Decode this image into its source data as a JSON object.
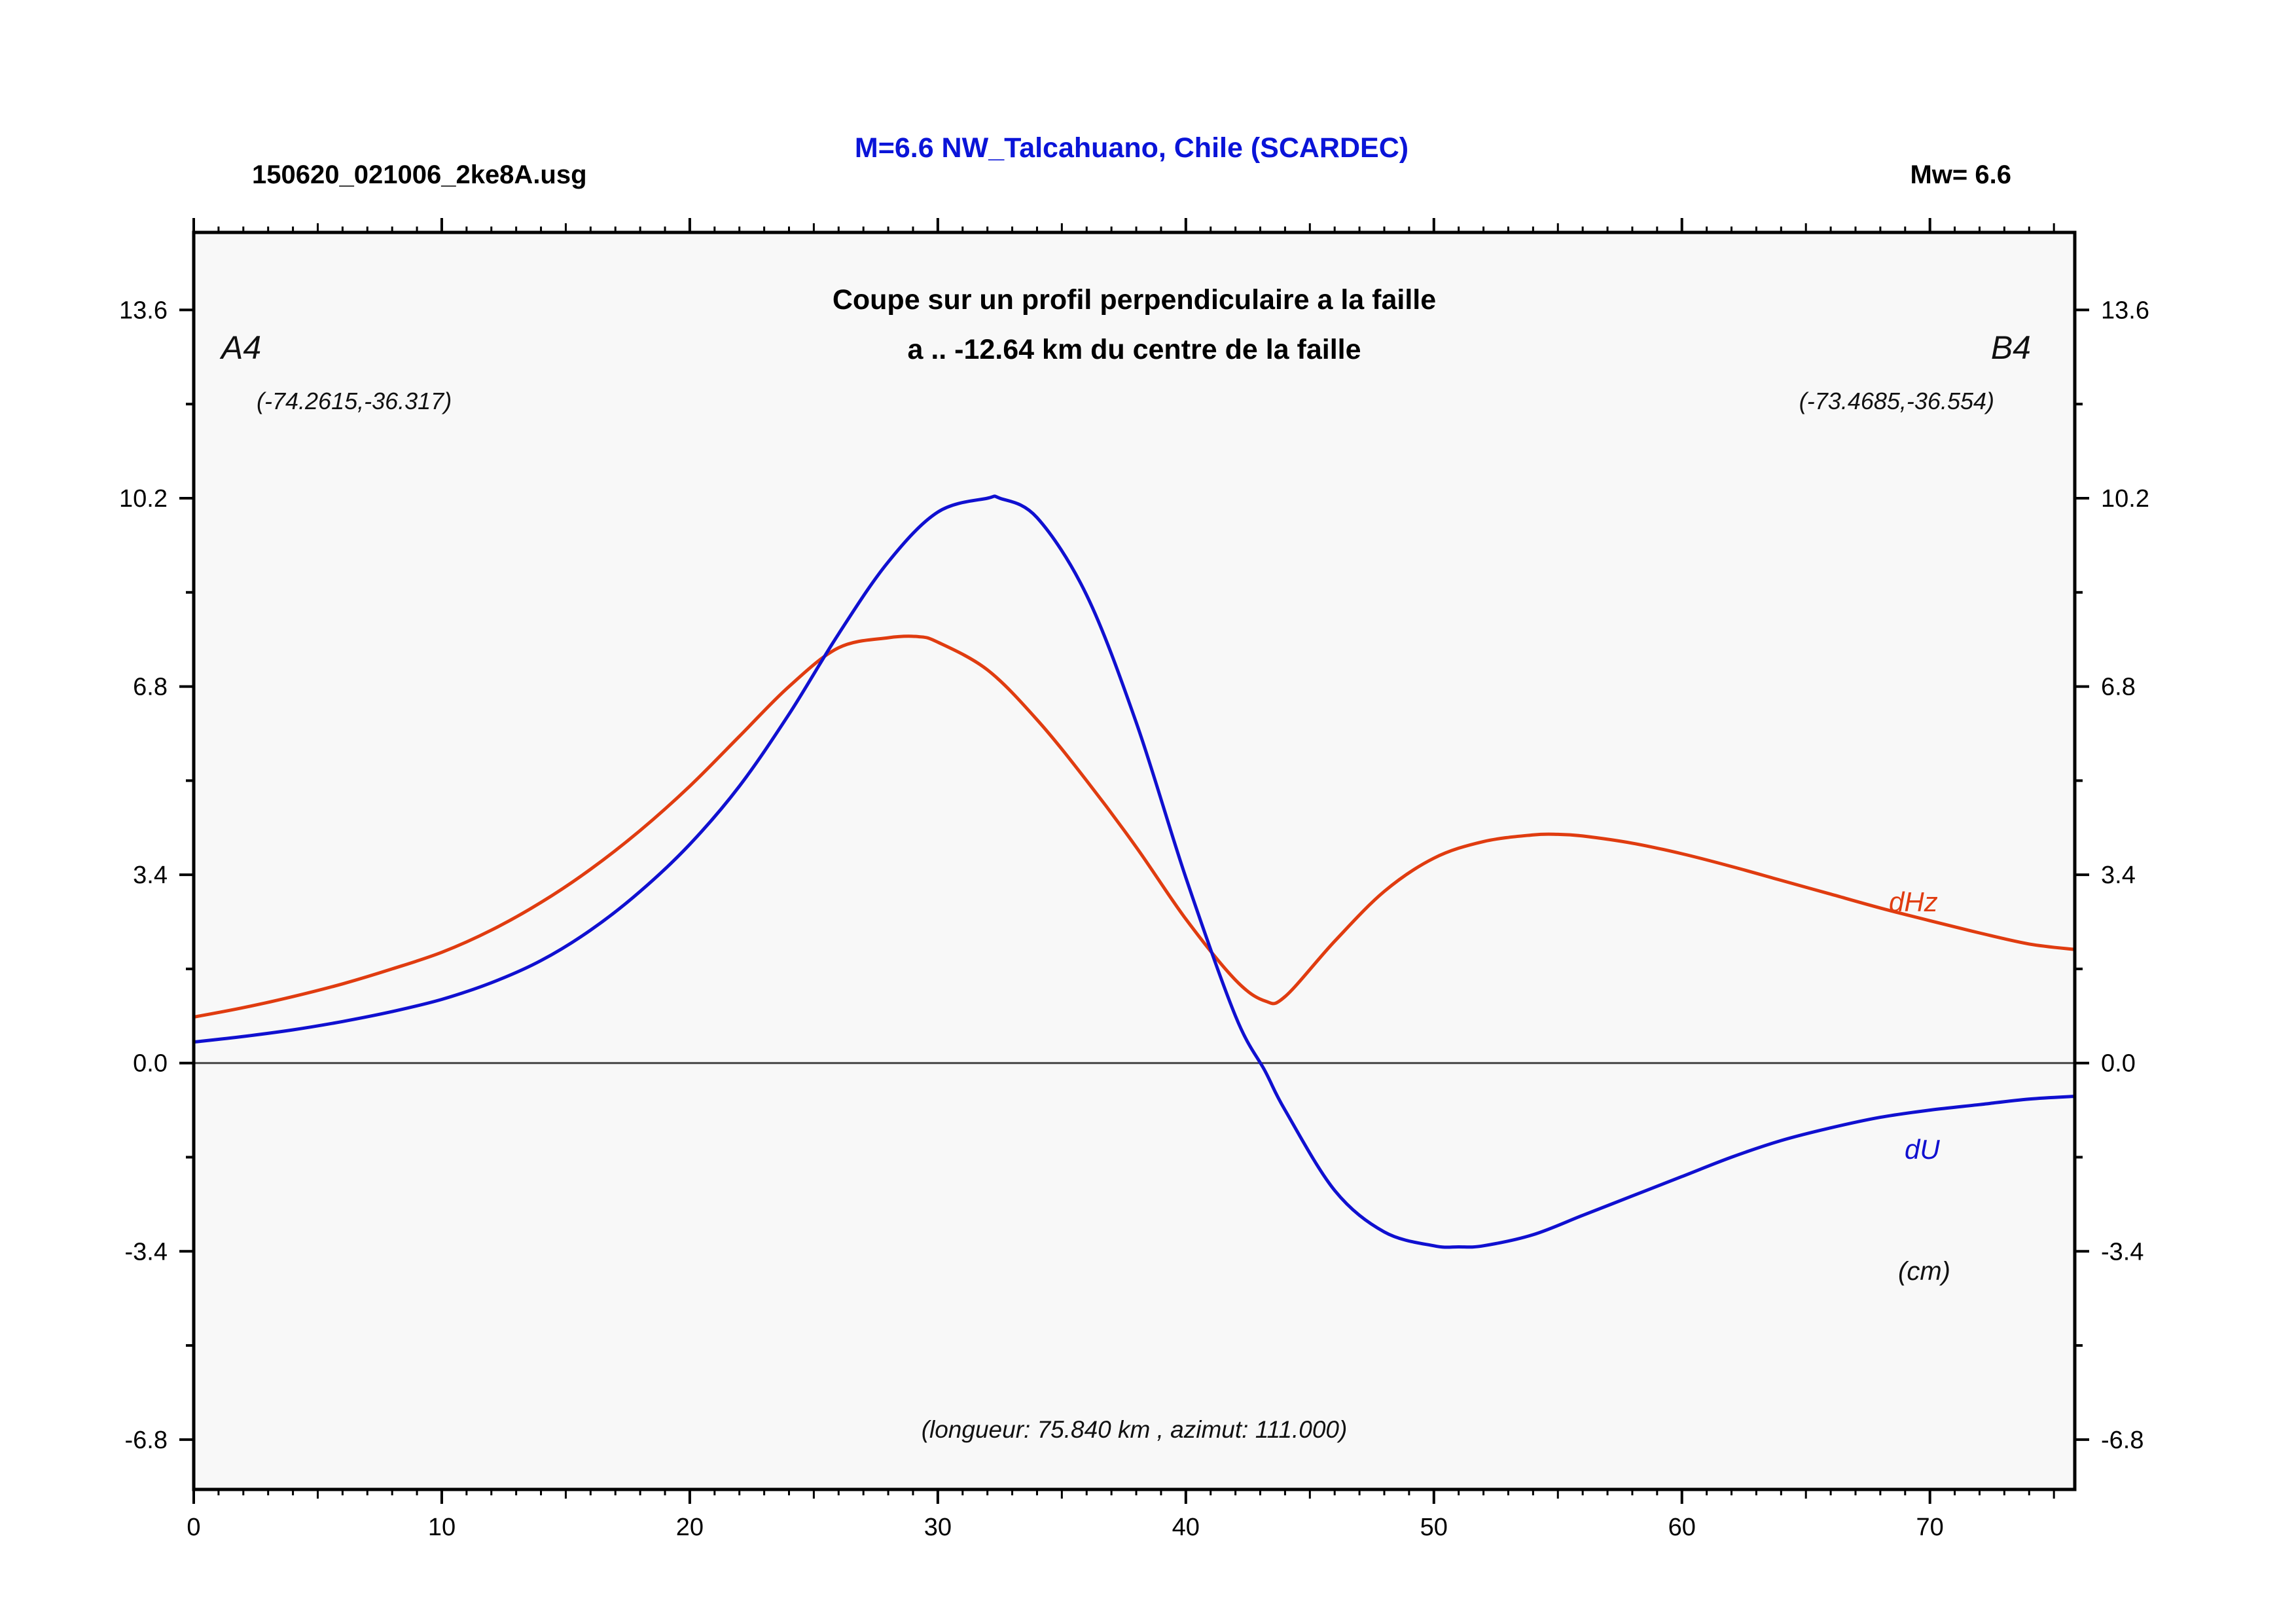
{
  "header": {
    "filename": "150620_021006_2ke8A.usg",
    "title": "M=6.6 NW_Talcahuano, Chile (SCARDEC)",
    "magnitude": "Mw= 6.6"
  },
  "colors": {
    "title_blue": "#0a14d8",
    "du": "#1010d0",
    "dhz": "#e03c10",
    "plot_bg": "#f8f8f8",
    "zero_line": "#444444"
  },
  "chart_data": {
    "type": "line",
    "title": "Coupe sur un profil perpendiculaire a la faille",
    "subtitle": "a .. -12.64 km du centre de la faille",
    "left_point": {
      "label": "A4",
      "coords": "(-74.2615,-36.317)"
    },
    "right_point": {
      "label": "B4",
      "coords": "(-73.4685,-36.554)"
    },
    "units": "(cm)",
    "note": "(longueur: 75.840 km , azimut: 111.000)",
    "xlim": [
      0,
      75.84
    ],
    "ylim": [
      -7.7,
      15.0
    ],
    "xticks": [
      0,
      10,
      20,
      30,
      40,
      50,
      60,
      70
    ],
    "xtick_labels": [
      "0",
      "10",
      "20",
      "30",
      "40",
      "50",
      "60",
      "70"
    ],
    "yticks": [
      13.6,
      10.2,
      6.8,
      3.4,
      0.0,
      -3.4,
      -6.8
    ],
    "ytick_labels": [
      "13.6",
      "10.2",
      "6.8",
      "3.4",
      "0.0",
      "-3.4",
      "-6.8"
    ],
    "zero_line": true,
    "grid": false,
    "series": [
      {
        "name": "dHz",
        "x": [
          0,
          2,
          4,
          6,
          8,
          10,
          12,
          14,
          16,
          18,
          20,
          22,
          24,
          26,
          28,
          29.2,
          30,
          32,
          34,
          36,
          38,
          40,
          42,
          43.2,
          44,
          46,
          48,
          50,
          52,
          54,
          55,
          56,
          58,
          60,
          62,
          64,
          66,
          68,
          70,
          72,
          74,
          75.84
        ],
        "y": [
          0.83,
          1.0,
          1.2,
          1.43,
          1.7,
          2.0,
          2.4,
          2.9,
          3.5,
          4.2,
          5.0,
          5.9,
          6.8,
          7.5,
          7.68,
          7.7,
          7.6,
          7.1,
          6.2,
          5.1,
          3.9,
          2.6,
          1.5,
          1.12,
          1.2,
          2.2,
          3.1,
          3.7,
          4.0,
          4.12,
          4.13,
          4.1,
          3.97,
          3.78,
          3.55,
          3.3,
          3.05,
          2.8,
          2.57,
          2.35,
          2.15,
          2.05
        ]
      },
      {
        "name": "dU",
        "x": [
          0,
          2,
          4,
          6,
          8,
          10,
          12,
          14,
          16,
          18,
          20,
          22,
          24,
          26,
          28,
          30,
          32,
          32.5,
          34,
          36,
          38,
          40,
          42,
          43.2,
          44,
          46,
          48,
          50,
          51,
          52,
          54,
          56,
          58,
          60,
          62,
          64,
          66,
          68,
          70,
          72,
          74,
          75.84
        ],
        "y": [
          0.38,
          0.48,
          0.6,
          0.75,
          0.93,
          1.15,
          1.45,
          1.85,
          2.4,
          3.1,
          3.95,
          5.0,
          6.3,
          7.75,
          9.05,
          9.95,
          10.2,
          10.2,
          9.85,
          8.45,
          6.15,
          3.35,
          0.85,
          -0.15,
          -0.85,
          -2.3,
          -3.05,
          -3.3,
          -3.32,
          -3.3,
          -3.1,
          -2.75,
          -2.4,
          -2.05,
          -1.7,
          -1.4,
          -1.17,
          -0.98,
          -0.85,
          -0.75,
          -0.65,
          -0.6
        ]
      }
    ]
  }
}
